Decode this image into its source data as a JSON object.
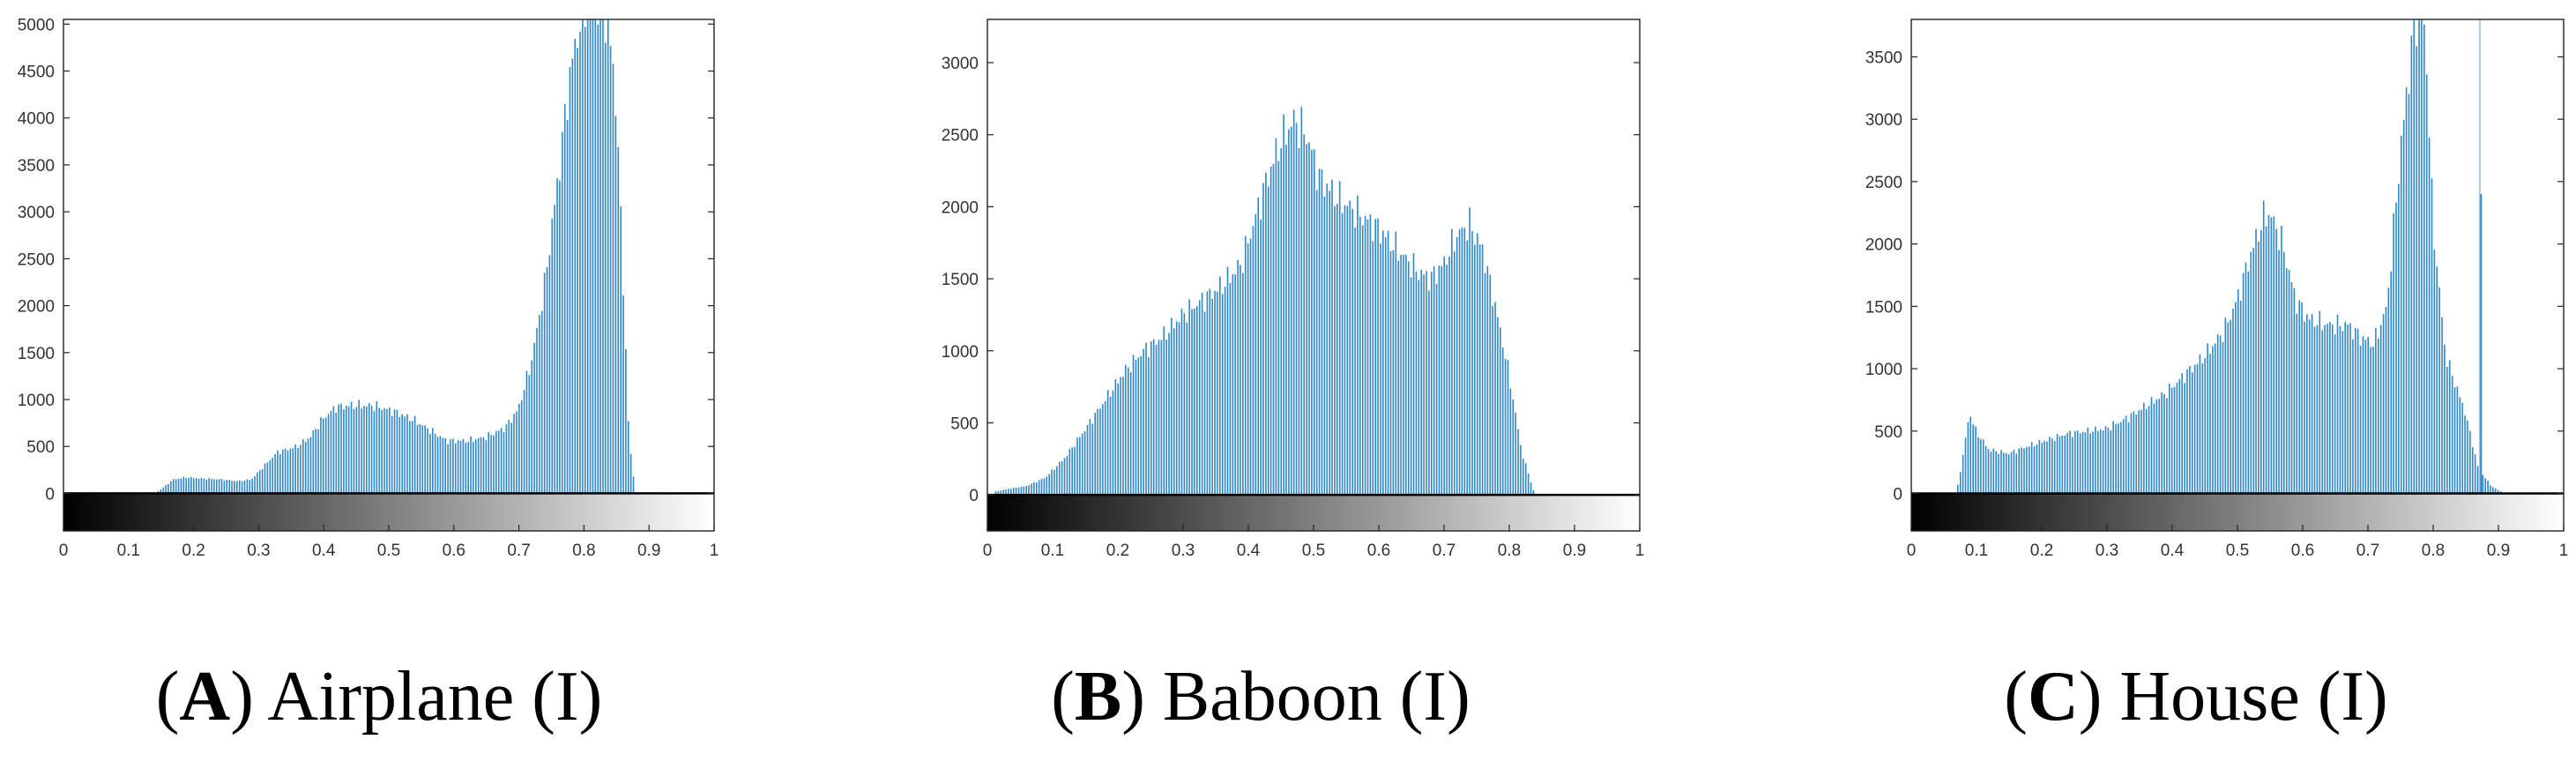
{
  "chart_data": [
    {
      "type": "bar",
      "ylim": [
        -400,
        5050
      ],
      "xlim": [
        0,
        1
      ],
      "yticks": [
        0,
        500,
        1000,
        1500,
        2000,
        2500,
        3000,
        3500,
        4000,
        4500,
        5000
      ],
      "xticks": [
        0,
        0.1,
        0.2,
        0.3,
        0.4,
        0.5,
        0.6,
        0.7,
        0.8,
        0.9,
        1
      ],
      "ytick_labels": [
        "0",
        "500",
        "1000",
        "1500",
        "2000",
        "2500",
        "3000",
        "3500",
        "4000",
        "4500",
        "5000"
      ],
      "xtick_labels": [
        "0",
        "0.1",
        "0.2",
        "0.3",
        "0.4",
        "0.5",
        "0.6",
        "0.7",
        "0.8",
        "0.9",
        "1"
      ],
      "colorbar": "grayscale",
      "bar_color": "#2f86c8",
      "x_range": [
        0.14,
        0.88
      ],
      "profile": [
        [
          0.14,
          0
        ],
        [
          0.15,
          40
        ],
        [
          0.17,
          150
        ],
        [
          0.19,
          170
        ],
        [
          0.21,
          160
        ],
        [
          0.24,
          150
        ],
        [
          0.27,
          130
        ],
        [
          0.29,
          150
        ],
        [
          0.31,
          300
        ],
        [
          0.33,
          440
        ],
        [
          0.36,
          500
        ],
        [
          0.38,
          600
        ],
        [
          0.4,
          800
        ],
        [
          0.42,
          920
        ],
        [
          0.45,
          940
        ],
        [
          0.48,
          930
        ],
        [
          0.51,
          870
        ],
        [
          0.54,
          780
        ],
        [
          0.57,
          650
        ],
        [
          0.59,
          560
        ],
        [
          0.62,
          560
        ],
        [
          0.65,
          600
        ],
        [
          0.68,
          700
        ],
        [
          0.7,
          900
        ],
        [
          0.72,
          1400
        ],
        [
          0.74,
          2200
        ],
        [
          0.76,
          3300
        ],
        [
          0.78,
          4500
        ],
        [
          0.8,
          5200
        ],
        [
          0.82,
          5300
        ],
        [
          0.84,
          4900
        ],
        [
          0.85,
          4200
        ],
        [
          0.86,
          2500
        ],
        [
          0.87,
          600
        ],
        [
          0.88,
          0
        ]
      ],
      "caption_letter": "A",
      "caption_text": ") Airplane (I)",
      "caption_open": "("
    },
    {
      "type": "bar",
      "ylim": [
        -250,
        3300
      ],
      "xlim": [
        0,
        1
      ],
      "yticks": [
        0,
        500,
        1000,
        1500,
        2000,
        2500,
        3000
      ],
      "xticks": [
        0,
        0.1,
        0.2,
        0.3,
        0.4,
        0.5,
        0.6,
        0.7,
        0.8,
        0.9,
        1
      ],
      "ytick_labels": [
        "0",
        "500",
        "1000",
        "1500",
        "2000",
        "2500",
        "3000"
      ],
      "xtick_labels": [
        "0",
        "0.1",
        "0.2",
        "0.3",
        "0.4",
        "0.5",
        "0.6",
        "0.7",
        "0.8",
        "0.9",
        "1"
      ],
      "colorbar": "grayscale",
      "bar_color": "#2f86c8",
      "x_range": [
        0.01,
        0.84
      ],
      "profile": [
        [
          0.01,
          20
        ],
        [
          0.03,
          40
        ],
        [
          0.06,
          60
        ],
        [
          0.09,
          120
        ],
        [
          0.12,
          260
        ],
        [
          0.15,
          450
        ],
        [
          0.18,
          650
        ],
        [
          0.21,
          850
        ],
        [
          0.24,
          1000
        ],
        [
          0.27,
          1100
        ],
        [
          0.3,
          1250
        ],
        [
          0.33,
          1350
        ],
        [
          0.36,
          1450
        ],
        [
          0.39,
          1600
        ],
        [
          0.41,
          1900
        ],
        [
          0.43,
          2200
        ],
        [
          0.45,
          2450
        ],
        [
          0.47,
          2600
        ],
        [
          0.49,
          2500
        ],
        [
          0.51,
          2200
        ],
        [
          0.54,
          2050
        ],
        [
          0.57,
          1950
        ],
        [
          0.6,
          1850
        ],
        [
          0.63,
          1700
        ],
        [
          0.66,
          1550
        ],
        [
          0.68,
          1500
        ],
        [
          0.7,
          1600
        ],
        [
          0.72,
          1800
        ],
        [
          0.74,
          1880
        ],
        [
          0.76,
          1700
        ],
        [
          0.78,
          1300
        ],
        [
          0.8,
          850
        ],
        [
          0.82,
          300
        ],
        [
          0.84,
          0
        ]
      ],
      "caption_letter": "B",
      "caption_text": ") Baboon (I)",
      "caption_open": "("
    },
    {
      "type": "bar",
      "ylim": [
        -300,
        3800
      ],
      "xlim": [
        0,
        1
      ],
      "yticks": [
        0,
        500,
        1000,
        1500,
        2000,
        2500,
        3000,
        3500
      ],
      "xticks": [
        0,
        0.1,
        0.2,
        0.3,
        0.4,
        0.5,
        0.6,
        0.7,
        0.8,
        0.9,
        1
      ],
      "ytick_labels": [
        "0",
        "500",
        "1000",
        "1500",
        "2000",
        "2500",
        "3000",
        "3500"
      ],
      "xtick_labels": [
        "0",
        "0.1",
        "0.2",
        "0.3",
        "0.4",
        "0.5",
        "0.6",
        "0.7",
        "0.8",
        "0.9",
        "1"
      ],
      "colorbar": "grayscale",
      "bar_color": "#2f86c8",
      "x_range": [
        0.07,
        0.91
      ],
      "profile": [
        [
          0.07,
          0
        ],
        [
          0.08,
          300
        ],
        [
          0.09,
          650
        ],
        [
          0.1,
          500
        ],
        [
          0.12,
          350
        ],
        [
          0.15,
          320
        ],
        [
          0.18,
          380
        ],
        [
          0.21,
          430
        ],
        [
          0.24,
          480
        ],
        [
          0.27,
          500
        ],
        [
          0.3,
          520
        ],
        [
          0.33,
          600
        ],
        [
          0.36,
          700
        ],
        [
          0.39,
          800
        ],
        [
          0.42,
          950
        ],
        [
          0.45,
          1100
        ],
        [
          0.48,
          1300
        ],
        [
          0.5,
          1550
        ],
        [
          0.52,
          1900
        ],
        [
          0.54,
          2200
        ],
        [
          0.55,
          2250
        ],
        [
          0.57,
          2000
        ],
        [
          0.59,
          1550
        ],
        [
          0.61,
          1400
        ],
        [
          0.64,
          1350
        ],
        [
          0.67,
          1350
        ],
        [
          0.69,
          1250
        ],
        [
          0.71,
          1200
        ],
        [
          0.73,
          1500
        ],
        [
          0.75,
          2700
        ],
        [
          0.77,
          3700
        ],
        [
          0.78,
          3900
        ],
        [
          0.79,
          3600
        ],
        [
          0.8,
          2200
        ],
        [
          0.82,
          1100
        ],
        [
          0.84,
          800
        ],
        [
          0.85,
          650
        ],
        [
          0.87,
          200
        ],
        [
          0.89,
          60
        ],
        [
          0.91,
          0
        ]
      ],
      "spikes": [
        [
          0.87,
          3900
        ],
        [
          0.87,
          2400
        ]
      ],
      "caption_letter": "C",
      "caption_text": ") House (I)",
      "caption_open": "("
    }
  ]
}
